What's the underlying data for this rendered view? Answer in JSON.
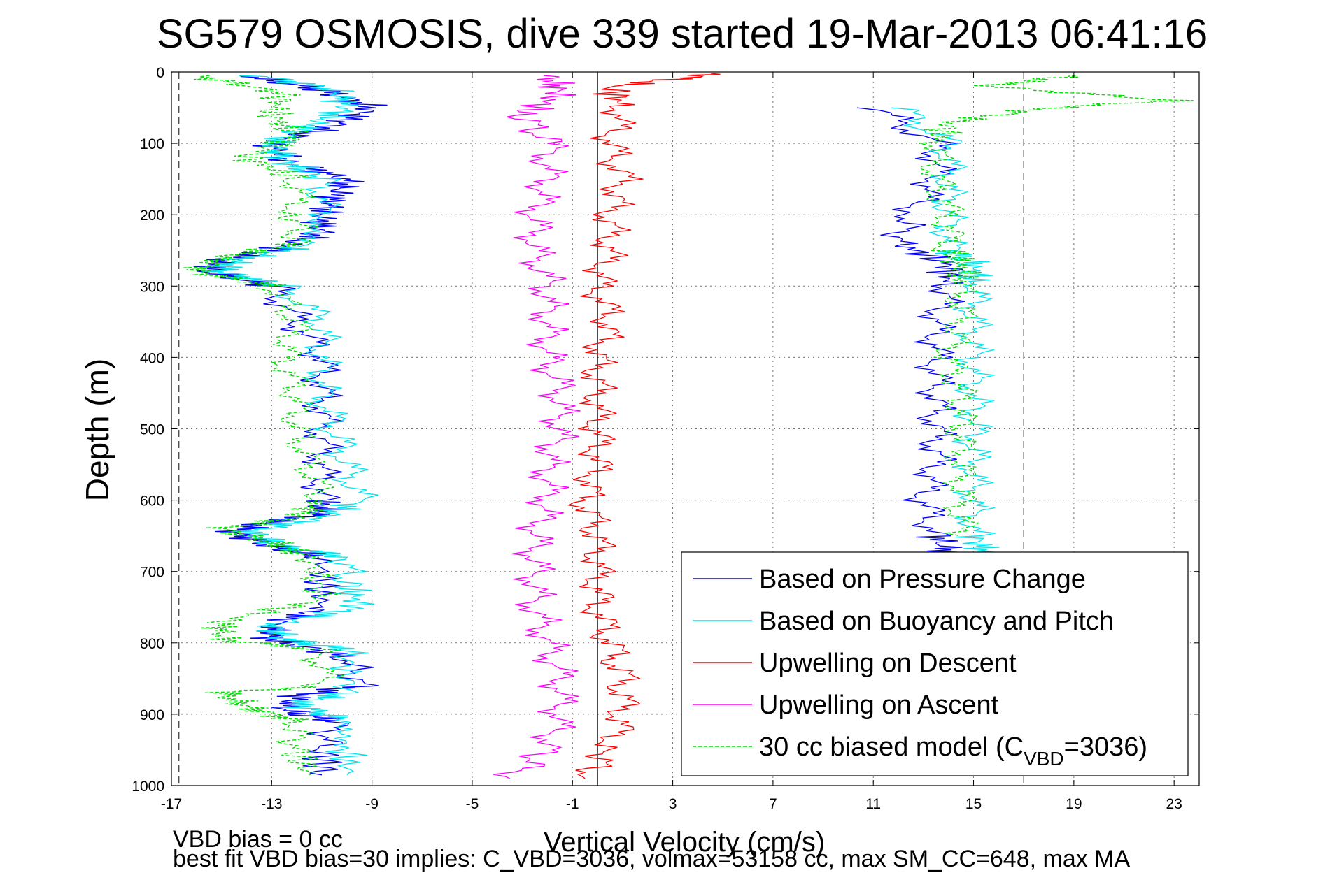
{
  "chart_data": {
    "type": "line",
    "title": "SG579 OSMOSIS, dive 339 started 19-Mar-2013 06:41:16",
    "xlabel": "Vertical Velocity (cm/s)",
    "ylabel": "Depth (m)",
    "xlim": [
      -17,
      24
    ],
    "ylim": [
      0,
      1000
    ],
    "y_reversed": true,
    "grid": true,
    "x_ticks": [
      "-17",
      "-13",
      "-9",
      "-5",
      "-1",
      "3",
      "7",
      "11",
      "15",
      "19",
      "23"
    ],
    "y_ticks": [
      "0",
      "100",
      "200",
      "300",
      "400",
      "500",
      "600",
      "700",
      "800",
      "900",
      "1000"
    ],
    "reference_lines": [
      {
        "x": -16.7,
        "style": "dashed"
      },
      {
        "x": 0,
        "style": "solid"
      },
      {
        "x": 17,
        "style": "dashed"
      }
    ],
    "legend_position": "bottom-right",
    "series": [
      {
        "name": "Based on Pressure Change",
        "color": "#0000ff",
        "style": "solid",
        "points": [
          [
            [
              -14.0,
              5
            ],
            [
              -11.0,
              25
            ],
            [
              -9.0,
              50
            ],
            [
              -10.5,
              75
            ],
            [
              -13.0,
              100
            ],
            [
              -12.5,
              125
            ],
            [
              -10.0,
              150
            ],
            [
              -10.5,
              175
            ],
            [
              -11.0,
              200
            ],
            [
              -11.0,
              225
            ],
            [
              -13.0,
              250
            ],
            [
              -15.0,
              265
            ],
            [
              -15.5,
              280
            ],
            [
              -13.0,
              300
            ],
            [
              -12.0,
              350
            ],
            [
              -11.0,
              400
            ],
            [
              -11.0,
              450
            ],
            [
              -11.0,
              500
            ],
            [
              -11.0,
              550
            ],
            [
              -11.0,
              600
            ],
            [
              -11.0,
              620
            ],
            [
              -13.0,
              630
            ],
            [
              -14.5,
              645
            ],
            [
              -13.0,
              665
            ],
            [
              -11.0,
              680
            ],
            [
              -11.0,
              750
            ],
            [
              -13.0,
              775
            ],
            [
              -13.0,
              795
            ],
            [
              -10.0,
              820
            ],
            [
              -9.5,
              860
            ],
            [
              -12.0,
              875
            ],
            [
              -12.5,
              895
            ],
            [
              -10.5,
              910
            ],
            [
              -11.0,
              950
            ],
            [
              -11.0,
              985
            ]
          ],
          [
            [
              11.0,
              50
            ],
            [
              13.5,
              100
            ],
            [
              13.5,
              150
            ],
            [
              12.5,
              200
            ],
            [
              12.0,
              240
            ],
            [
              14.0,
              270
            ],
            [
              14.0,
              300
            ],
            [
              13.5,
              350
            ],
            [
              13.5,
              400
            ],
            [
              13.5,
              450
            ],
            [
              13.5,
              500
            ],
            [
              13.5,
              550
            ],
            [
              13.0,
              600
            ],
            [
              13.5,
              650
            ],
            [
              14.0,
              675
            ]
          ]
        ]
      },
      {
        "name": "Based on Buoyancy and Pitch",
        "color": "#00e5ee",
        "style": "solid",
        "points": [
          [
            [
              -13.5,
              5
            ],
            [
              -10.5,
              25
            ],
            [
              -10.0,
              50
            ],
            [
              -11.5,
              75
            ],
            [
              -13.0,
              100
            ],
            [
              -12.5,
              125
            ],
            [
              -11.0,
              150
            ],
            [
              -11.0,
              200
            ],
            [
              -12.0,
              245
            ],
            [
              -14.5,
              265
            ],
            [
              -15.0,
              280
            ],
            [
              -12.5,
              300
            ],
            [
              -11.0,
              350
            ],
            [
              -11.0,
              400
            ],
            [
              -11.0,
              450
            ],
            [
              -10.5,
              500
            ],
            [
              -10.0,
              550
            ],
            [
              -9.5,
              600
            ],
            [
              -11.0,
              625
            ],
            [
              -14.0,
              645
            ],
            [
              -12.5,
              665
            ],
            [
              -10.0,
              680
            ],
            [
              -10.0,
              720
            ],
            [
              -9.5,
              750
            ],
            [
              -13.0,
              775
            ],
            [
              -12.5,
              795
            ],
            [
              -10.0,
              810
            ],
            [
              -10.0,
              870
            ],
            [
              -12.0,
              885
            ],
            [
              -10.5,
              905
            ],
            [
              -10.0,
              950
            ],
            [
              -10.0,
              985
            ]
          ],
          [
            [
              12.0,
              50
            ],
            [
              14.0,
              100
            ],
            [
              14.0,
              150
            ],
            [
              14.0,
              200
            ],
            [
              14.0,
              250
            ],
            [
              15.0,
              270
            ],
            [
              15.0,
              300
            ],
            [
              15.0,
              350
            ],
            [
              15.0,
              400
            ],
            [
              15.0,
              450
            ],
            [
              15.0,
              500
            ],
            [
              15.0,
              550
            ],
            [
              15.0,
              600
            ],
            [
              15.0,
              650
            ],
            [
              15.5,
              675
            ]
          ]
        ]
      },
      {
        "name": "Upwelling on Descent",
        "color": "#ff0000",
        "style": "solid",
        "points": [
          [
            [
              5.0,
              2
            ],
            [
              0.5,
              20
            ],
            [
              1.0,
              50
            ],
            [
              0.5,
              100
            ],
            [
              1.0,
              150
            ],
            [
              0.5,
              200
            ],
            [
              0.5,
              250
            ],
            [
              0.0,
              300
            ],
            [
              0.5,
              350
            ],
            [
              0.0,
              400
            ],
            [
              0.0,
              450
            ],
            [
              0.0,
              500
            ],
            [
              0.0,
              550
            ],
            [
              -0.5,
              600
            ],
            [
              0.0,
              650
            ],
            [
              0.0,
              700
            ],
            [
              0.0,
              750
            ],
            [
              0.5,
              800
            ],
            [
              1.0,
              850
            ],
            [
              1.0,
              900
            ],
            [
              0.5,
              950
            ],
            [
              -0.5,
              990
            ]
          ]
        ]
      },
      {
        "name": "Upwelling on Ascent",
        "color": "#ff00ff",
        "style": "solid",
        "points": [
          [
            [
              -2.0,
              5
            ],
            [
              -1.5,
              30
            ],
            [
              -3.0,
              60
            ],
            [
              -2.0,
              100
            ],
            [
              -2.0,
              150
            ],
            [
              -2.5,
              200
            ],
            [
              -2.5,
              250
            ],
            [
              -2.0,
              300
            ],
            [
              -2.0,
              350
            ],
            [
              -2.0,
              400
            ],
            [
              -1.5,
              450
            ],
            [
              -1.5,
              500
            ],
            [
              -2.0,
              550
            ],
            [
              -2.0,
              600
            ],
            [
              -2.5,
              650
            ],
            [
              -2.5,
              700
            ],
            [
              -2.5,
              750
            ],
            [
              -2.0,
              800
            ],
            [
              -1.5,
              850
            ],
            [
              -1.5,
              900
            ],
            [
              -2.0,
              950
            ],
            [
              -3.5,
              990
            ]
          ]
        ]
      },
      {
        "name": "30 cc biased model (C_VBD=3036)",
        "color": "#00dd00",
        "style": "dashed",
        "points": [
          [
            [
              -16.0,
              5
            ],
            [
              -12.5,
              30
            ],
            [
              -13.0,
              60
            ],
            [
              -12.0,
              90
            ],
            [
              -14.0,
              120
            ],
            [
              -12.0,
              150
            ],
            [
              -12.0,
              200
            ],
            [
              -12.0,
              240
            ],
            [
              -15.0,
              260
            ],
            [
              -16.0,
              280
            ],
            [
              -13.0,
              300
            ],
            [
              -12.0,
              350
            ],
            [
              -12.5,
              400
            ],
            [
              -12.0,
              450
            ],
            [
              -12.0,
              500
            ],
            [
              -11.5,
              550
            ],
            [
              -11.0,
              600
            ],
            [
              -12.0,
              625
            ],
            [
              -15.0,
              640
            ],
            [
              -13.0,
              660
            ],
            [
              -11.5,
              680
            ],
            [
              -11.0,
              740
            ],
            [
              -15.0,
              770
            ],
            [
              -15.0,
              795
            ],
            [
              -11.0,
              810
            ],
            [
              -11.0,
              860
            ],
            [
              -15.0,
              870
            ],
            [
              -14.0,
              890
            ],
            [
              -12.0,
              910
            ],
            [
              -12.0,
              950
            ],
            [
              -11.5,
              985
            ]
          ],
          [
            [
              19.0,
              5
            ],
            [
              15.5,
              20
            ],
            [
              23.0,
              40
            ],
            [
              18.0,
              50
            ],
            [
              14.0,
              70
            ],
            [
              13.5,
              100
            ],
            [
              13.5,
              150
            ],
            [
              14.0,
              200
            ],
            [
              14.0,
              250
            ],
            [
              14.5,
              270
            ],
            [
              14.5,
              300
            ],
            [
              14.5,
              350
            ],
            [
              14.0,
              400
            ],
            [
              14.5,
              450
            ],
            [
              14.5,
              500
            ],
            [
              14.5,
              550
            ],
            [
              14.5,
              600
            ],
            [
              14.5,
              650
            ]
          ]
        ]
      }
    ],
    "legend": [
      {
        "label": "Based on Pressure Change",
        "color": "#0000ff",
        "style": "solid"
      },
      {
        "label": "Based on Buoyancy and Pitch",
        "color": "#00e5ee",
        "style": "solid"
      },
      {
        "label": "Upwelling on Descent",
        "color": "#ff0000",
        "style": "solid"
      },
      {
        "label": "Upwelling on Ascent",
        "color": "#ff00ff",
        "style": "solid"
      },
      {
        "label_main": "30 cc biased model (C",
        "label_sub": "VBD",
        "label_tail": "=3036)",
        "color": "#00dd00",
        "style": "dashed"
      }
    ]
  },
  "footnotes": {
    "line1": "VBD bias = 0 cc",
    "line2": "best fit VBD bias=30 implies: C_VBD=3036, volmax=53158 cc, max SM_CC=648, max MA"
  }
}
